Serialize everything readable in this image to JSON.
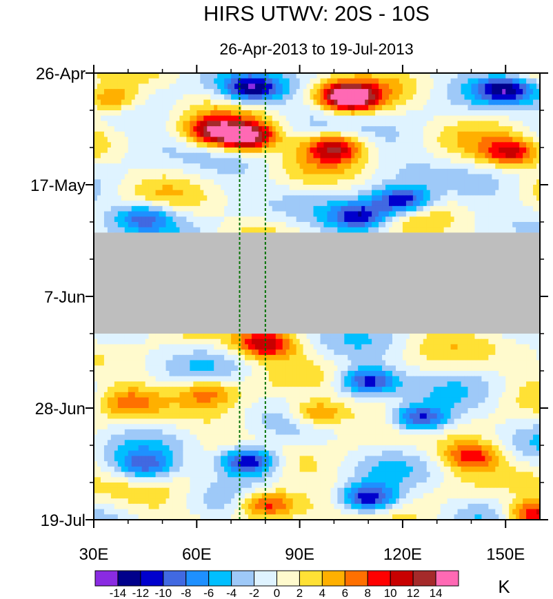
{
  "chart_data": {
    "type": "heatmap",
    "title": "HIRS UTWV: 20S - 10S",
    "subtitle": "26-Apr-2013 to 19-Jul-2013",
    "x_axis": {
      "range": [
        30,
        160
      ],
      "ticks": [
        30,
        60,
        90,
        120,
        150
      ],
      "tick_labels": [
        "30E",
        "60E",
        "90E",
        "120E",
        "150E"
      ],
      "unit": "degrees longitude"
    },
    "y_axis": {
      "range_days": [
        0,
        84
      ],
      "inverted": true,
      "ticks_days": [
        0,
        21,
        42,
        63,
        84
      ],
      "tick_labels": [
        "26-Apr",
        "17-May",
        "7-Jun",
        "28-Jun",
        "19-Jul"
      ]
    },
    "colorbar": {
      "unit_label": "K",
      "levels": [
        -14,
        -12,
        -10,
        -8,
        -6,
        -4,
        -2,
        0,
        2,
        4,
        6,
        8,
        10,
        12,
        14
      ],
      "level_labels": [
        "-14",
        "-12",
        "-10",
        "-8",
        "-6",
        "-4",
        "-2",
        "0",
        "2",
        "4",
        "6",
        "8",
        "10",
        "12",
        "14"
      ],
      "colors": [
        "#8a2be2",
        "#00008b",
        "#0000cd",
        "#4169e1",
        "#1e90ff",
        "#00bfff",
        "#9ec9f8",
        "#dff3ff",
        "#fffacd",
        "#ffe135",
        "#ffb000",
        "#ff7000",
        "#ff0000",
        "#c80000",
        "#a52a2a",
        "#ff69b4"
      ]
    },
    "missing_data": [
      {
        "lon_start": 30,
        "lon_end": 160,
        "day_start": 30,
        "day_end": 49,
        "color": "#bebebe"
      }
    ],
    "reference_lines": [
      {
        "lon": 72.5,
        "style": "dashed",
        "color": "#007000"
      },
      {
        "lon": 80,
        "style": "dashed",
        "color": "#007000"
      }
    ],
    "anomaly_features": [
      {
        "lon": 75,
        "day": 12,
        "value": 15
      },
      {
        "lon": 65,
        "day": 11,
        "value": 11
      },
      {
        "lon": 100,
        "day": 14,
        "value": 11
      },
      {
        "lon": 103,
        "day": 4,
        "value": 10
      },
      {
        "lon": 35,
        "day": 5,
        "value": 8
      },
      {
        "lon": 105,
        "day": 5,
        "value": 9
      },
      {
        "lon": 76,
        "day": 3,
        "value": -13
      },
      {
        "lon": 150,
        "day": 3,
        "value": -12
      },
      {
        "lon": 152,
        "day": 15,
        "value": 10
      },
      {
        "lon": 120,
        "day": 24,
        "value": -13
      },
      {
        "lon": 108,
        "day": 27,
        "value": -11
      },
      {
        "lon": 45,
        "day": 27,
        "value": -9
      },
      {
        "lon": 80,
        "day": 51,
        "value": 11
      },
      {
        "lon": 110,
        "day": 58,
        "value": -12
      },
      {
        "lon": 63,
        "day": 60,
        "value": 7
      },
      {
        "lon": 95,
        "day": 64,
        "value": 9
      },
      {
        "lon": 125,
        "day": 65,
        "value": -12
      },
      {
        "lon": 75,
        "day": 73,
        "value": -14
      },
      {
        "lon": 45,
        "day": 74,
        "value": -8
      },
      {
        "lon": 110,
        "day": 80,
        "value": -13
      },
      {
        "lon": 80,
        "day": 81,
        "value": 11
      },
      {
        "lon": 158,
        "day": 83,
        "value": 11
      },
      {
        "lon": 140,
        "day": 72,
        "value": 8
      },
      {
        "lon": 40,
        "day": 62,
        "value": 5
      }
    ]
  }
}
